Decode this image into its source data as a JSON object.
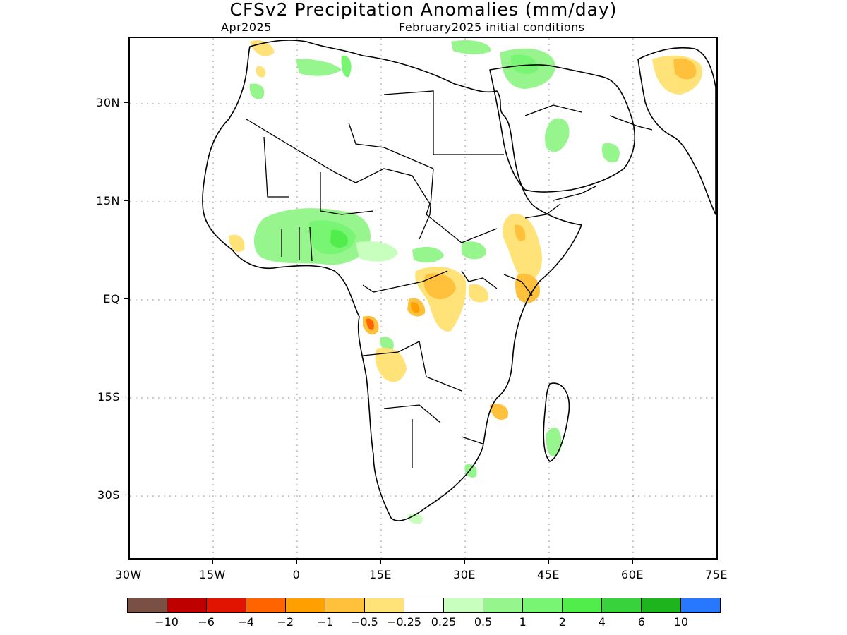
{
  "title": "CFSv2 Precipitation Anomalies (mm/day)",
  "subtitle_left": "Apr2025",
  "subtitle_right": "February2025 initial conditions",
  "map": {
    "lon_range": [
      -30,
      75
    ],
    "lat_range": [
      -46,
      47
    ],
    "lat_ticks": [
      {
        "value": 30,
        "label": "30N"
      },
      {
        "value": 15,
        "label": "15N"
      },
      {
        "value": 0,
        "label": "EQ"
      },
      {
        "value": -15,
        "label": "15S"
      },
      {
        "value": -30,
        "label": "30S"
      }
    ],
    "lon_ticks": [
      {
        "value": -30,
        "label": "30W"
      },
      {
        "value": -15,
        "label": "15W"
      },
      {
        "value": 0,
        "label": "0"
      },
      {
        "value": 15,
        "label": "15E"
      },
      {
        "value": 30,
        "label": "30E"
      },
      {
        "value": 45,
        "label": "45E"
      },
      {
        "value": 60,
        "label": "60E"
      },
      {
        "value": 75,
        "label": "75E"
      }
    ]
  },
  "legend": {
    "colors": [
      "#7a5044",
      "#be0000",
      "#e01400",
      "#ff6400",
      "#ffa000",
      "#ffc03c",
      "#ffe278",
      "#ffffff",
      "#c8ffbe",
      "#96f58c",
      "#78f573",
      "#50ed4b",
      "#37d23c",
      "#1eb41e",
      "#2878ff"
    ],
    "labels": [
      "−10",
      "−6",
      "−4",
      "−2",
      "−1",
      "−0.5",
      "−0.25",
      "0.25",
      "0.5",
      "1",
      "2",
      "4",
      "6",
      "10"
    ]
  }
}
